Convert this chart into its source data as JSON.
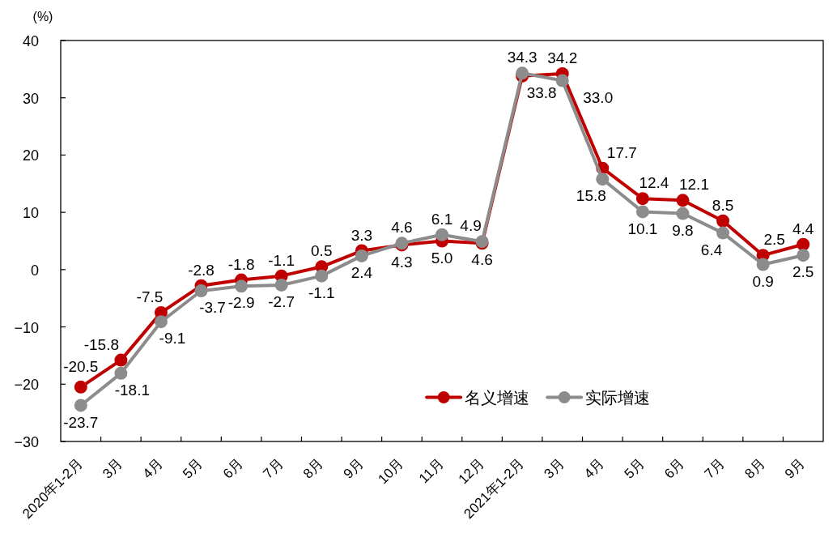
{
  "chart_data": {
    "type": "line",
    "ylabel": "(%)",
    "categories": [
      "2020年1-2月",
      "3月",
      "4月",
      "5月",
      "6月",
      "7月",
      "8月",
      "9月",
      "10月",
      "11月",
      "12月",
      "2021年1-2月",
      "3月",
      "4月",
      "5月",
      "6月",
      "7月",
      "8月",
      "9月"
    ],
    "series": [
      {
        "name": "名义增速",
        "color": "#c00000",
        "values": [
          -20.5,
          -15.8,
          -7.5,
          -2.8,
          -1.8,
          -1.1,
          0.5,
          3.3,
          4.3,
          5.0,
          4.6,
          33.8,
          34.2,
          17.7,
          12.4,
          12.1,
          8.5,
          2.5,
          4.4
        ],
        "value_labels": [
          "-20.5",
          "-15.8",
          "-7.5",
          "-2.8",
          "-1.8",
          "-1.1",
          "0.5",
          "3.3",
          "4.3",
          "5.0",
          "4.6",
          "33.8",
          "34.2",
          "17.7",
          "12.4",
          "12.1",
          "8.5",
          "2.5",
          "4.4"
        ]
      },
      {
        "name": "实际增速",
        "color": "#8c8c8c",
        "values": [
          -23.7,
          -18.1,
          -9.1,
          -3.7,
          -2.9,
          -2.7,
          -1.1,
          2.4,
          4.6,
          6.1,
          4.9,
          34.3,
          33.0,
          15.8,
          10.1,
          9.8,
          6.4,
          0.9,
          2.5
        ],
        "value_labels": [
          "-23.7",
          "-18.1",
          "-9.1",
          "-3.7",
          "-2.9",
          "-2.7",
          "-1.1",
          "2.4",
          "4.6",
          "6.1",
          "4.9",
          "34.3",
          "33.0",
          "15.8",
          "10.1",
          "9.8",
          "6.4",
          "0.9",
          "2.5"
        ]
      }
    ],
    "ylim": [
      -30,
      40
    ],
    "yticks": [
      {
        "value": -30,
        "label": "−30"
      },
      {
        "value": -20,
        "label": "−20"
      },
      {
        "value": -10,
        "label": "−10"
      },
      0,
      10,
      20,
      30,
      40
    ],
    "legend": "bottom right",
    "marker": "circle"
  }
}
